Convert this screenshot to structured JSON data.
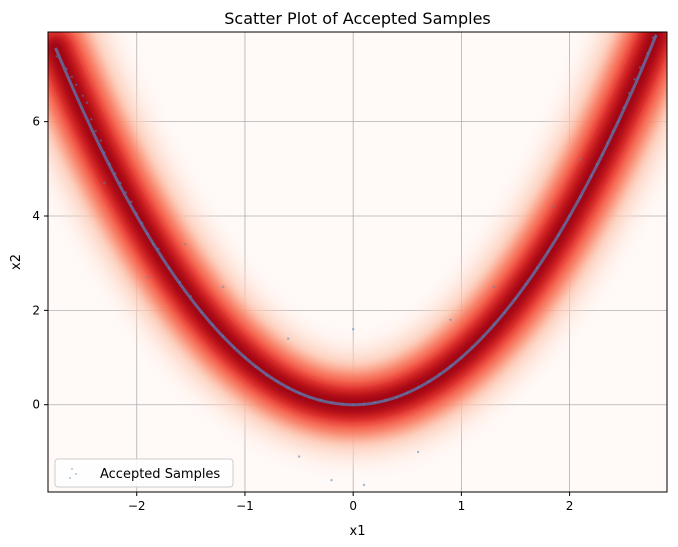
{
  "chart_data": {
    "type": "scatter",
    "title": "Scatter Plot of Accepted Samples",
    "xlabel": "x1",
    "ylabel": "x2",
    "xlim": [
      -2.82,
      2.9
    ],
    "ylim": [
      -1.85,
      7.9
    ],
    "x_ticks": [
      -2,
      -1,
      0,
      1,
      2
    ],
    "y_ticks": [
      0,
      2,
      4,
      6
    ],
    "x_tick_labels": [
      "−2",
      "−1",
      "0",
      "1",
      "2"
    ],
    "y_tick_labels": [
      "0",
      "2",
      "4",
      "6"
    ],
    "grid": true,
    "legend": {
      "placement": "lower-left",
      "entries": [
        "Accepted Samples"
      ]
    },
    "density_overlay": {
      "colormap": "Reds",
      "center_curve": "x2 = x1^2"
    },
    "series": [
      {
        "name": "Accepted Samples",
        "color": "#4f86b8",
        "points": [
          [
            -2.74,
            7.38
          ],
          [
            -2.65,
            7.12
          ],
          [
            -2.6,
            6.95
          ],
          [
            -2.56,
            6.78
          ],
          [
            -2.5,
            6.55
          ],
          [
            -2.46,
            6.4
          ],
          [
            -2.42,
            6.05
          ],
          [
            -2.38,
            5.8
          ],
          [
            -2.33,
            5.6
          ],
          [
            -2.3,
            5.35
          ],
          [
            -2.25,
            5.1
          ],
          [
            -2.2,
            4.9
          ],
          [
            -2.15,
            4.7
          ],
          [
            -2.1,
            4.5
          ],
          [
            -2.05,
            4.3
          ],
          [
            -2.0,
            4.05
          ],
          [
            -1.95,
            3.85
          ],
          [
            -1.9,
            3.62
          ],
          [
            -1.85,
            3.4
          ],
          [
            -1.8,
            3.3
          ],
          [
            -1.7,
            2.9
          ],
          [
            -1.6,
            2.6
          ],
          [
            -1.5,
            2.3
          ],
          [
            -1.4,
            1.95
          ],
          [
            -1.3,
            1.7
          ],
          [
            -1.2,
            1.45
          ],
          [
            -1.1,
            1.2
          ],
          [
            -1.0,
            1.0
          ],
          [
            -0.9,
            0.8
          ],
          [
            -0.8,
            0.62
          ],
          [
            -0.7,
            0.5
          ],
          [
            -0.6,
            0.35
          ],
          [
            -0.5,
            0.25
          ],
          [
            -0.4,
            0.15
          ],
          [
            -0.3,
            0.1
          ],
          [
            -0.2,
            0.05
          ],
          [
            -0.1,
            0.02
          ],
          [
            0.0,
            0.0
          ],
          [
            0.1,
            0.02
          ],
          [
            0.2,
            0.05
          ],
          [
            0.3,
            0.1
          ],
          [
            0.4,
            0.16
          ],
          [
            0.5,
            0.25
          ],
          [
            0.6,
            0.36
          ],
          [
            0.7,
            0.5
          ],
          [
            0.8,
            0.65
          ],
          [
            0.9,
            0.82
          ],
          [
            1.0,
            1.0
          ],
          [
            1.1,
            1.22
          ],
          [
            1.2,
            1.45
          ],
          [
            1.3,
            1.7
          ],
          [
            1.4,
            1.95
          ],
          [
            1.5,
            2.25
          ],
          [
            1.6,
            2.55
          ],
          [
            1.7,
            2.9
          ],
          [
            1.8,
            3.25
          ],
          [
            1.9,
            3.6
          ],
          [
            2.0,
            4.0
          ],
          [
            2.1,
            4.4
          ],
          [
            2.2,
            4.85
          ],
          [
            2.25,
            5.1
          ],
          [
            2.3,
            5.3
          ],
          [
            2.35,
            5.55
          ],
          [
            2.4,
            5.8
          ],
          [
            2.45,
            6.0
          ],
          [
            2.5,
            6.3
          ],
          [
            2.55,
            6.6
          ],
          [
            2.6,
            6.9
          ],
          [
            2.65,
            7.15
          ],
          [
            2.72,
            7.45
          ],
          [
            2.77,
            7.78
          ],
          [
            2.1,
            5.2
          ],
          [
            -2.3,
            4.7
          ],
          [
            -1.55,
            3.4
          ],
          [
            1.85,
            4.2
          ],
          [
            -0.2,
            -1.6
          ],
          [
            0.1,
            -1.7
          ],
          [
            -0.5,
            -1.1
          ],
          [
            0.6,
            -1.0
          ],
          [
            0.0,
            1.6
          ],
          [
            -0.6,
            1.4
          ],
          [
            0.9,
            1.8
          ],
          [
            -1.2,
            2.5
          ],
          [
            1.3,
            2.5
          ],
          [
            -1.9,
            2.7
          ]
        ]
      }
    ]
  }
}
